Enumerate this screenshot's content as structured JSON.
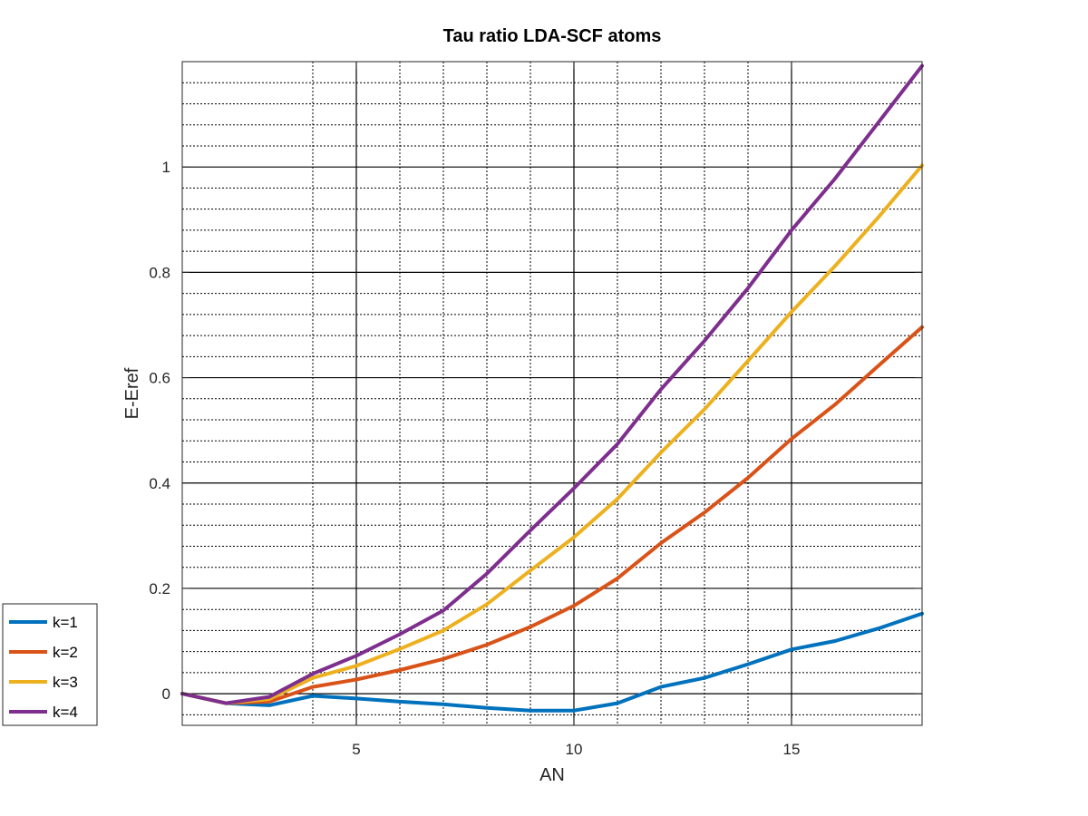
{
  "chart_data": {
    "type": "line",
    "title": "Tau ratio LDA-SCF atoms",
    "xlabel": "AN",
    "ylabel": "E-Eref",
    "xlim": [
      1,
      18
    ],
    "ylim": [
      -0.06,
      1.2
    ],
    "xticks": [
      5,
      10,
      15
    ],
    "xtick_labels": [
      "5",
      "10",
      "15"
    ],
    "yticks": [
      0,
      0.2,
      0.4,
      0.6,
      0.8,
      1
    ],
    "ytick_labels": [
      "0",
      "0.2",
      "0.4",
      "0.6",
      "0.8",
      "1"
    ],
    "x_minor_grid": [
      4,
      6,
      7,
      8,
      9,
      11,
      12,
      13,
      14
    ],
    "y_minor_grid_step": 0.04,
    "grid": true,
    "legend_placement": "outside-bottom-left",
    "x": [
      1,
      2,
      3,
      4,
      5,
      6,
      7,
      8,
      9,
      10,
      11,
      12,
      13,
      14,
      15,
      16,
      17,
      18
    ],
    "series": [
      {
        "name": "k=1",
        "color": "#0072BD",
        "values": [
          0,
          -0.018,
          -0.022,
          -0.004,
          -0.009,
          -0.015,
          -0.02,
          -0.027,
          -0.032,
          -0.032,
          -0.018,
          0.013,
          0.03,
          0.056,
          0.084,
          0.1,
          0.124,
          0.152
        ]
      },
      {
        "name": "k=2",
        "color": "#D95319",
        "values": [
          0,
          -0.018,
          -0.015,
          0.013,
          0.027,
          0.045,
          0.066,
          0.093,
          0.127,
          0.167,
          0.219,
          0.286,
          0.344,
          0.41,
          0.484,
          0.549,
          0.623,
          0.696
        ]
      },
      {
        "name": "k=3",
        "color": "#EDB120",
        "values": [
          0,
          -0.018,
          -0.01,
          0.03,
          0.053,
          0.085,
          0.12,
          0.17,
          0.234,
          0.297,
          0.37,
          0.458,
          0.54,
          0.632,
          0.725,
          0.812,
          0.905,
          1.003
        ]
      },
      {
        "name": "k=4",
        "color": "#7E2F8E",
        "values": [
          0,
          -0.018,
          -0.006,
          0.038,
          0.072,
          0.113,
          0.158,
          0.228,
          0.31,
          0.39,
          0.474,
          0.578,
          0.67,
          0.77,
          0.88,
          0.978,
          1.085,
          1.192
        ]
      }
    ]
  }
}
